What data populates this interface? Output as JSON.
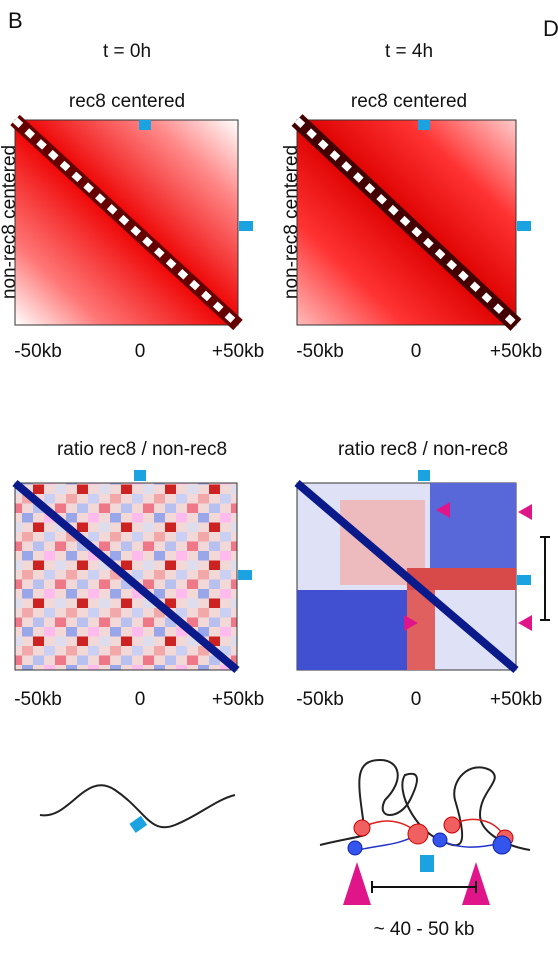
{
  "panel_label": "B",
  "next_panel_label": "D",
  "columns": [
    {
      "time": "t = 0h",
      "heatmap_title": "rec8 centered",
      "y_label": "non-rec8 centered",
      "ratio_title": "ratio rec8 / non-rec8"
    },
    {
      "time": "t = 4h",
      "heatmap_title": "rec8 centered",
      "y_label": "non-rec8 centered",
      "ratio_title": "ratio rec8 / non-rec8"
    }
  ],
  "x_ticks": [
    "-50kb",
    "0",
    "+50kb"
  ],
  "scale_label": "~ 40 - 50 kb"
}
